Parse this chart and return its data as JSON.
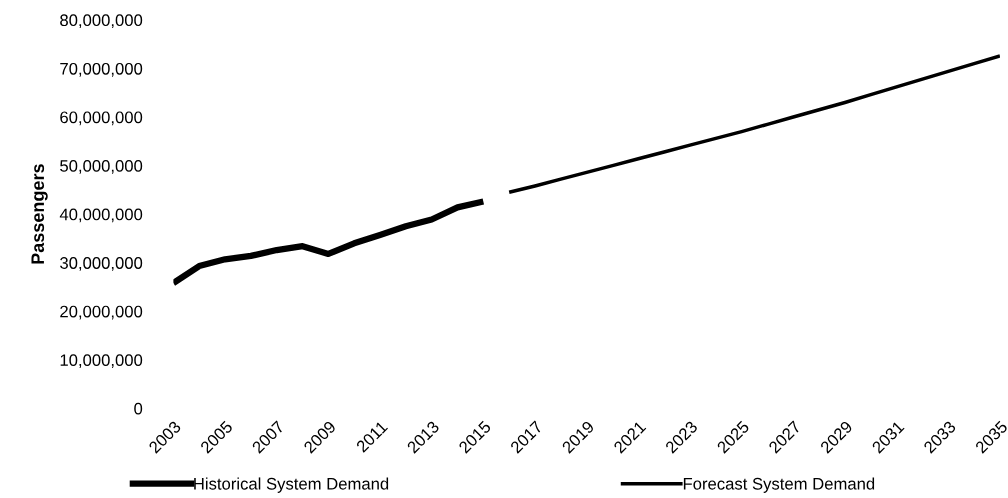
{
  "chart_data": {
    "type": "line",
    "ylabel": "Passengers",
    "categories": [
      "2003",
      null,
      "2005",
      null,
      "2007",
      null,
      "2009",
      null,
      "2011",
      null,
      "2013",
      null,
      "2015",
      null,
      "2017",
      null,
      "2019",
      null,
      "2021",
      null,
      "2023",
      null,
      "2025",
      null,
      "2027",
      null,
      "2029",
      null,
      "2031",
      null,
      "2033",
      null,
      "2035"
    ],
    "series": [
      {
        "name": "Historical System Demand",
        "color": "#000000",
        "line_style": "solid",
        "values": [
          25800000.0,
          29300000.0,
          30700000.0,
          31400000.0,
          32600000.0,
          33400000.0,
          31800000.0,
          34000000.0,
          35700000.0,
          37500000.0,
          38900000.0,
          41400000.0,
          42600000.0,
          null,
          null,
          null,
          null,
          null,
          null,
          null,
          null,
          null,
          null,
          null,
          null,
          null,
          null,
          null,
          null,
          null,
          null,
          null,
          null
        ]
      },
      {
        "name": "Forecast System Demand",
        "color": "#000000",
        "line_style": "solid",
        "values": [
          null,
          null,
          null,
          null,
          null,
          null,
          null,
          null,
          null,
          null,
          null,
          null,
          null,
          44500000.0,
          45800000.0,
          47200000.0,
          48600000.0,
          50000000.0,
          51400000.0,
          52800000.0,
          54200000.0,
          55600000.0,
          57000000.0,
          58500000.0,
          60000000.0,
          61500000.0,
          63000000.0,
          64600000.0,
          66200000.0,
          67800000.0,
          69400000.0,
          71000000.0,
          72600000.0
        ]
      }
    ],
    "ylim": [
      0,
      80000000
    ],
    "yticks": [
      {
        "value": 0,
        "label": "0"
      },
      {
        "value": 10000000,
        "label": "10,000,000"
      },
      {
        "value": 20000000,
        "label": "20,000,000"
      },
      {
        "value": 30000000,
        "label": "30,000,000"
      },
      {
        "value": 40000000,
        "label": "40,000,000"
      },
      {
        "value": 50000000,
        "label": "50,000,000"
      },
      {
        "value": 60000000,
        "label": "60,000,000"
      },
      {
        "value": 70000000,
        "label": "70,000,000"
      },
      {
        "value": 80000000,
        "label": "80,000,000"
      }
    ],
    "grid": false,
    "legend": "bottom",
    "marker": "none"
  }
}
